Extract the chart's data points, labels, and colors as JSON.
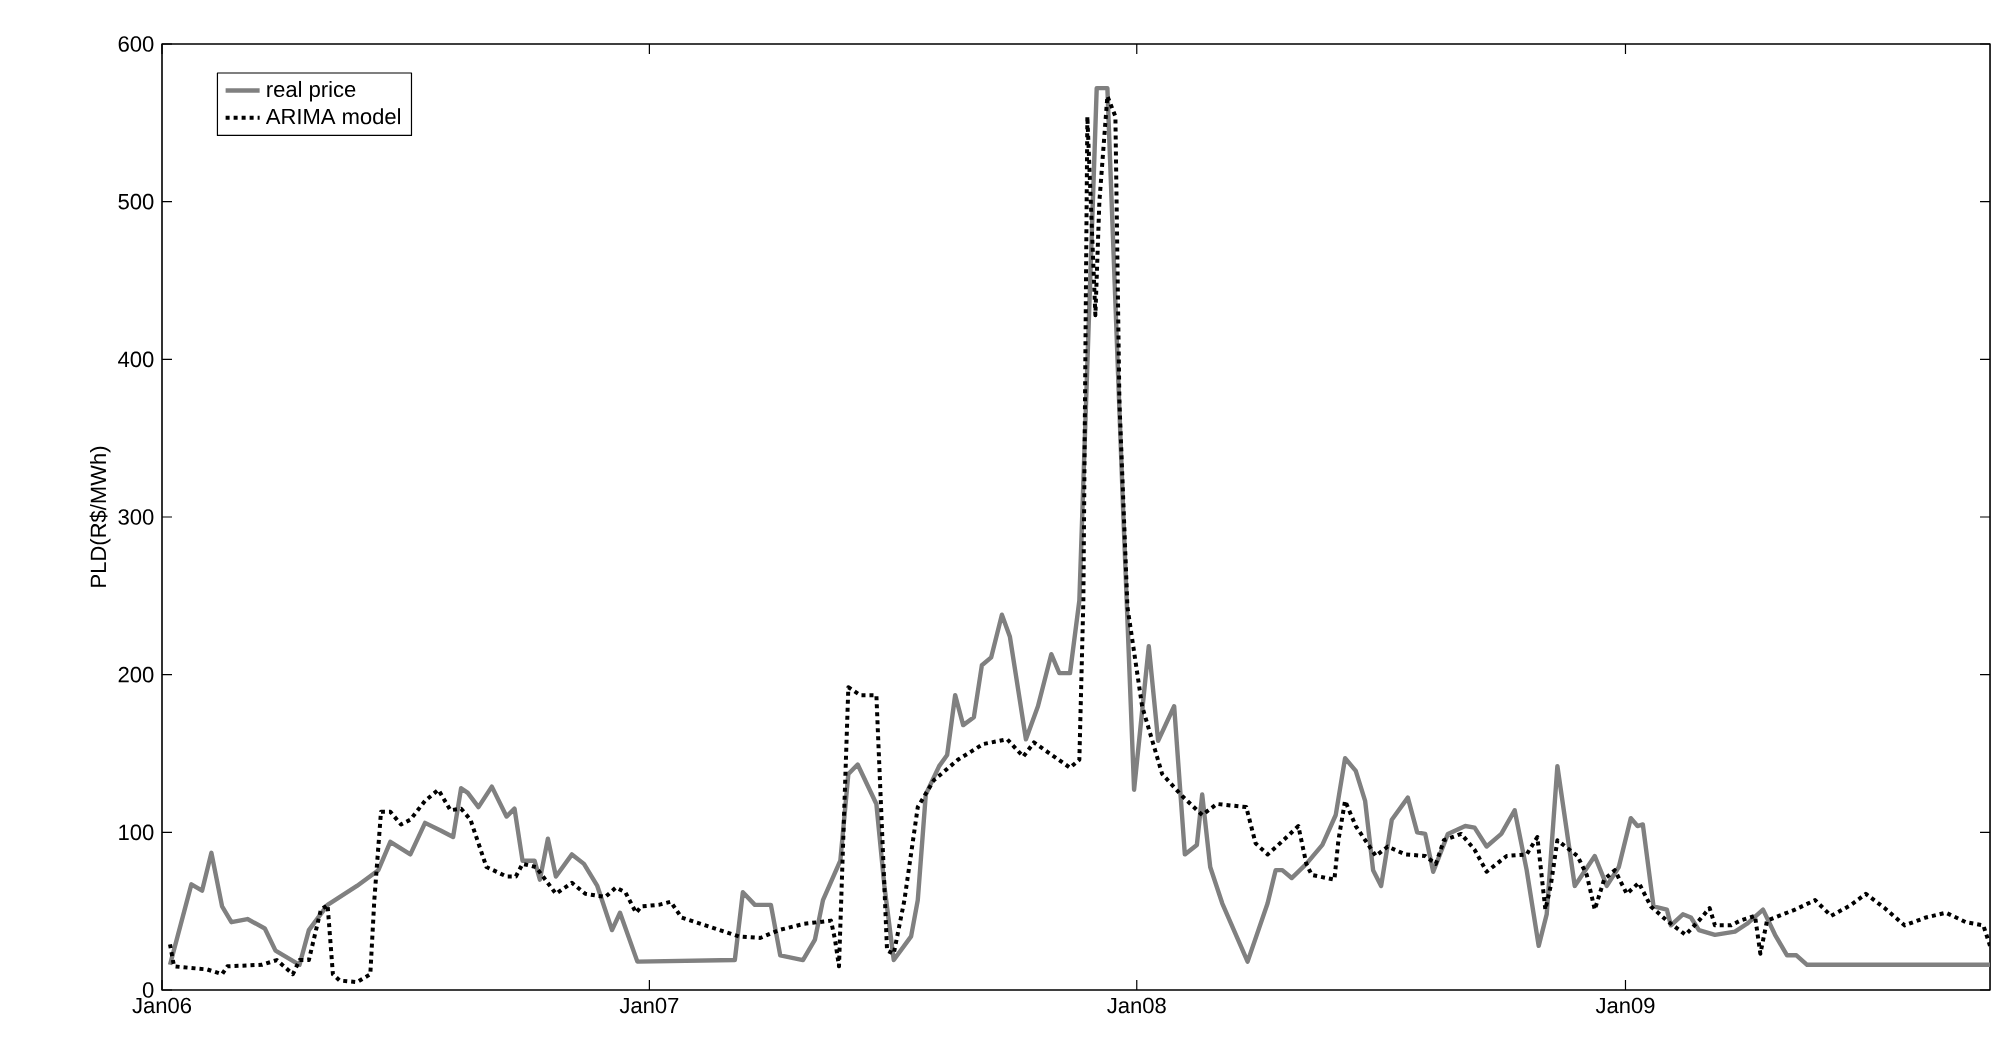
{
  "chart_data": {
    "type": "line",
    "ylabel": "PLD(R$/MWh)",
    "xlim": [
      "2006-01-01",
      "2009-10-01"
    ],
    "ylim": [
      0,
      600
    ],
    "yticks": [
      0,
      100,
      200,
      300,
      400,
      500,
      600
    ],
    "xticks": [
      {
        "value": "2006-01-01",
        "label": "Jan06"
      },
      {
        "value": "2007-01-01",
        "label": "Jan07"
      },
      {
        "value": "2008-01-01",
        "label": "Jan08"
      },
      {
        "value": "2009-01-01",
        "label": "Jan09"
      }
    ],
    "grid": false,
    "legend": "top left",
    "marker": "none",
    "series": [
      {
        "name": "real price",
        "color": "#808080",
        "line_style": "solid",
        "x": [
          "2006-01-07",
          "2006-01-23",
          "2006-01-31",
          "2006-02-07",
          "2006-02-15",
          "2006-02-22",
          "2006-03-06",
          "2006-03-19",
          "2006-03-27",
          "2006-04-14",
          "2006-04-21",
          "2006-05-05",
          "2006-05-27",
          "2006-06-12",
          "2006-06-21",
          "2006-07-06",
          "2006-07-17",
          "2006-07-29",
          "2006-08-07",
          "2006-08-13",
          "2006-08-18",
          "2006-08-26",
          "2006-09-05",
          "2006-09-16",
          "2006-09-22",
          "2006-09-28",
          "2006-10-07",
          "2006-10-11",
          "2006-10-17",
          "2006-10-23",
          "2006-11-04",
          "2006-11-13",
          "2006-11-23",
          "2006-12-04",
          "2006-12-10",
          "2006-12-23",
          "2007-03-06",
          "2007-03-12",
          "2007-03-21",
          "2007-04-02",
          "2007-04-09",
          "2007-04-26",
          "2007-05-05",
          "2007-05-11",
          "2007-05-24",
          "2007-05-30",
          "2007-06-06",
          "2007-06-20",
          "2007-06-26",
          "2007-07-03",
          "2007-07-16",
          "2007-07-21",
          "2007-07-27",
          "2007-08-06",
          "2007-08-12",
          "2007-08-18",
          "2007-08-24",
          "2007-09-01",
          "2007-09-07",
          "2007-09-14",
          "2007-09-22",
          "2007-09-28",
          "2007-10-10",
          "2007-10-19",
          "2007-10-29",
          "2007-11-04",
          "2007-11-12",
          "2007-11-19",
          "2007-12-02",
          "2007-12-10",
          "2007-12-22",
          "2007-12-30",
          "2008-01-10",
          "2008-01-17",
          "2008-01-29",
          "2008-02-06",
          "2008-02-15",
          "2008-02-19",
          "2008-02-25",
          "2008-03-05",
          "2008-03-24",
          "2008-04-08",
          "2008-04-14",
          "2008-04-19",
          "2008-04-26",
          "2008-05-07",
          "2008-05-19",
          "2008-05-29",
          "2008-06-05",
          "2008-06-13",
          "2008-06-20",
          "2008-06-26",
          "2008-07-02",
          "2008-07-10",
          "2008-07-22",
          "2008-07-29",
          "2008-08-04",
          "2008-08-10",
          "2008-08-21",
          "2008-09-03",
          "2008-09-10",
          "2008-09-19",
          "2008-09-30",
          "2008-10-10",
          "2008-10-19",
          "2008-10-28",
          "2008-11-03",
          "2008-11-11",
          "2008-11-24",
          "2008-12-09",
          "2008-12-18",
          "2008-12-27",
          "2009-01-05",
          "2009-01-10",
          "2009-01-14",
          "2009-01-22",
          "2009-02-01",
          "2009-02-04",
          "2009-02-13",
          "2009-02-19",
          "2009-02-25",
          "2009-03-09",
          "2009-03-24",
          "2009-04-02",
          "2009-04-14",
          "2009-04-23",
          "2009-05-02",
          "2009-05-09",
          "2009-05-17",
          "2009-10-01"
        ],
        "values": [
          16,
          67,
          63,
          87,
          53,
          43,
          45,
          39,
          25,
          16,
          38,
          54,
          66,
          76,
          94,
          86,
          106,
          101,
          97,
          128,
          125,
          116,
          129,
          110,
          115,
          82,
          82,
          70,
          96,
          72,
          86,
          80,
          66,
          38,
          49,
          18,
          19,
          62,
          54,
          54,
          22,
          19,
          32,
          57,
          82,
          137,
          143,
          118,
          66,
          19,
          34,
          57,
          124,
          142,
          149,
          187,
          168,
          173,
          206,
          211,
          238,
          224,
          159,
          180,
          213,
          201,
          201,
          247,
          572,
          572,
          300,
          127,
          218,
          158,
          180,
          86,
          92,
          124,
          78,
          55,
          18,
          55,
          76,
          76,
          71,
          80,
          92,
          111,
          147,
          139,
          120,
          76,
          66,
          108,
          122,
          100,
          99,
          75,
          99,
          104,
          103,
          91,
          99,
          114,
          76,
          28,
          48,
          142,
          66,
          85,
          66,
          78,
          109,
          104,
          105,
          53,
          51,
          41,
          48,
          46,
          38,
          35,
          37,
          42,
          51,
          35,
          22,
          22,
          16,
          16
        ]
      },
      {
        "name": "ARIMA model",
        "color": "#000000",
        "line_style": "dotted",
        "x": [
          "2006-01-07",
          "2006-01-10",
          "2006-02-04",
          "2006-02-15",
          "2006-02-19",
          "2006-03-17",
          "2006-03-28",
          "2006-04-09",
          "2006-04-14",
          "2006-04-21",
          "2006-04-30",
          "2006-05-05",
          "2006-05-09",
          "2006-05-14",
          "2006-05-27",
          "2006-06-06",
          "2006-06-09",
          "2006-06-14",
          "2006-06-21",
          "2006-06-29",
          "2006-07-06",
          "2006-07-17",
          "2006-07-27",
          "2006-08-05",
          "2006-08-13",
          "2006-08-20",
          "2006-09-01",
          "2006-09-16",
          "2006-09-23",
          "2006-09-28",
          "2006-10-08",
          "2006-10-23",
          "2006-11-04",
          "2006-11-14",
          "2006-11-29",
          "2006-12-07",
          "2006-12-14",
          "2006-12-22",
          "2006-12-26",
          "2007-01-08",
          "2007-01-17",
          "2007-01-25",
          "2007-02-12",
          "2007-03-09",
          "2007-03-25",
          "2007-04-08",
          "2007-04-27",
          "2007-05-17",
          "2007-05-20",
          "2007-05-23",
          "2007-05-30",
          "2007-06-08",
          "2007-06-20",
          "2007-06-28",
          "2007-07-03",
          "2007-07-11",
          "2007-07-21",
          "2007-08-02",
          "2007-08-20",
          "2007-09-08",
          "2007-09-26",
          "2007-10-08",
          "2007-10-16",
          "2007-11-12",
          "2007-11-19",
          "2007-11-22",
          "2007-11-25",
          "2007-12-01",
          "2007-12-04",
          "2007-12-10",
          "2007-12-16",
          "2007-12-19",
          "2007-12-25",
          "2008-01-05",
          "2008-01-20",
          "2008-02-04",
          "2008-02-19",
          "2008-03-01",
          "2008-03-23",
          "2008-03-30",
          "2008-04-08",
          "2008-04-16",
          "2008-05-01",
          "2008-05-07",
          "2008-05-11",
          "2008-05-28",
          "2008-05-31",
          "2008-06-05",
          "2008-06-13",
          "2008-06-28",
          "2008-07-07",
          "2008-07-20",
          "2008-08-04",
          "2008-08-12",
          "2008-08-18",
          "2008-08-31",
          "2008-09-10",
          "2008-09-19",
          "2008-10-04",
          "2008-10-19",
          "2008-10-27",
          "2008-11-02",
          "2008-11-06",
          "2008-11-11",
          "2008-11-26",
          "2008-12-03",
          "2008-12-09",
          "2008-12-16",
          "2008-12-24",
          "2009-01-02",
          "2009-01-11",
          "2009-01-20",
          "2009-02-01",
          "2009-02-15",
          "2009-02-25",
          "2009-03-05",
          "2009-03-09",
          "2009-03-21",
          "2009-03-28",
          "2009-04-08",
          "2009-04-12",
          "2009-04-17",
          "2009-05-08",
          "2009-05-23",
          "2009-06-04",
          "2009-06-19",
          "2009-06-30",
          "2009-07-14",
          "2009-07-29",
          "2009-08-14",
          "2009-08-29",
          "2009-09-13",
          "2009-09-26",
          "2009-10-01"
        ],
        "values": [
          29,
          15,
          13,
          10,
          15,
          16,
          19,
          10,
          19,
          19,
          51,
          54,
          10,
          6,
          5,
          10,
          57,
          113,
          113,
          105,
          108,
          120,
          127,
          114,
          115,
          108,
          78,
          72,
          72,
          80,
          78,
          61,
          68,
          61,
          59,
          65,
          62,
          49,
          53,
          54,
          56,
          46,
          41,
          34,
          33,
          38,
          42,
          44,
          32,
          15,
          192,
          187,
          187,
          25,
          23,
          57,
          116,
          133,
          146,
          156,
          159,
          148,
          157,
          141,
          146,
          247,
          554,
          428,
          500,
          567,
          554,
          373,
          243,
          180,
          137,
          123,
          111,
          118,
          116,
          93,
          86,
          92,
          104,
          80,
          73,
          70,
          95,
          120,
          104,
          85,
          91,
          86,
          85,
          80,
          95,
          99,
          89,
          75,
          85,
          86,
          97,
          51,
          66,
          95,
          85,
          73,
          51,
          70,
          76,
          61,
          68,
          53,
          44,
          35,
          44,
          52,
          41,
          41,
          44,
          47,
          23,
          44,
          51,
          57,
          47,
          54,
          61,
          52,
          41,
          46,
          49,
          43,
          41,
          28
        ]
      }
    ]
  }
}
